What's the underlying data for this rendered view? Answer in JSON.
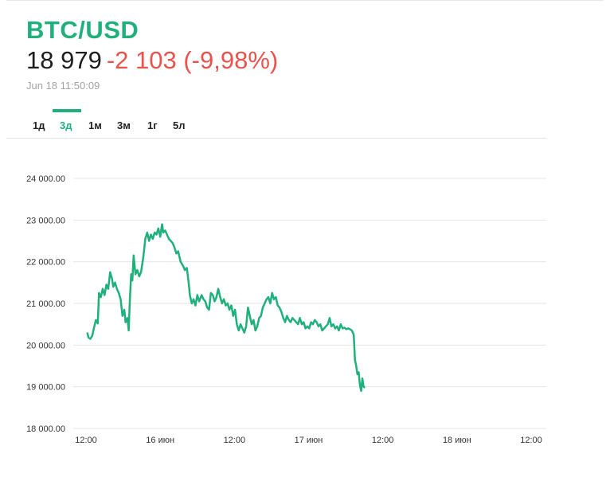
{
  "header": {
    "symbol": "BTC/USD",
    "price": "18 979",
    "change": "-2 103 (-9,98%)",
    "timestamp": "Jun 18 11:50:09"
  },
  "tabs": [
    {
      "label": "1д",
      "active": false
    },
    {
      "label": "3д",
      "active": true
    },
    {
      "label": "1м",
      "active": false
    },
    {
      "label": "3м",
      "active": false
    },
    {
      "label": "1г",
      "active": false
    },
    {
      "label": "5л",
      "active": false
    }
  ],
  "colors": {
    "accent": "#1fb07b",
    "negative": "#e8534d",
    "line": "#1fb07b"
  },
  "chart_data": {
    "type": "line",
    "title": "",
    "xlabel": "",
    "ylabel": "",
    "ylim": [
      18000,
      24000
    ],
    "xlim": [
      0,
      72
    ],
    "y_ticks": [
      {
        "value": 18000,
        "label": "18 000.00"
      },
      {
        "value": 19000,
        "label": "19 000.00"
      },
      {
        "value": 20000,
        "label": "20 000.00"
      },
      {
        "value": 21000,
        "label": "21 000.00"
      },
      {
        "value": 22000,
        "label": "22 000.00"
      },
      {
        "value": 23000,
        "label": "23 000.00"
      },
      {
        "value": 24000,
        "label": "24 000.00"
      }
    ],
    "x_ticks": [
      {
        "value": 0,
        "label": "12:00"
      },
      {
        "value": 12,
        "label": "16 июн"
      },
      {
        "value": 24,
        "label": "12:00"
      },
      {
        "value": 36,
        "label": "17 июн"
      },
      {
        "value": 48,
        "label": "12:00"
      },
      {
        "value": 60,
        "label": "18 июн"
      },
      {
        "value": 72,
        "label": "12:00"
      }
    ],
    "grid": true,
    "series": [
      {
        "values": [
          [
            0.2,
            20300
          ],
          [
            0.4,
            20180
          ],
          [
            0.7,
            20150
          ],
          [
            1.0,
            20220
          ],
          [
            1.3,
            20420
          ],
          [
            1.6,
            20600
          ],
          [
            1.9,
            20520
          ],
          [
            2.1,
            21250
          ],
          [
            2.4,
            21150
          ],
          [
            2.7,
            21350
          ],
          [
            3.0,
            21200
          ],
          [
            3.3,
            21450
          ],
          [
            3.6,
            21350
          ],
          [
            3.9,
            21750
          ],
          [
            4.2,
            21600
          ],
          [
            4.4,
            21400
          ],
          [
            4.7,
            21500
          ],
          [
            5.0,
            21350
          ],
          [
            5.3,
            21250
          ],
          [
            5.6,
            21100
          ],
          [
            5.9,
            20700
          ],
          [
            6.2,
            20850
          ],
          [
            6.4,
            20550
          ],
          [
            6.7,
            20650
          ],
          [
            6.9,
            20350
          ],
          [
            7.1,
            21100
          ],
          [
            7.3,
            21700
          ],
          [
            7.5,
            21550
          ],
          [
            7.7,
            22150
          ],
          [
            8.0,
            21700
          ],
          [
            8.3,
            21800
          ],
          [
            8.6,
            21650
          ],
          [
            8.9,
            21750
          ],
          [
            9.1,
            21950
          ],
          [
            9.3,
            22150
          ],
          [
            9.6,
            22550
          ],
          [
            9.9,
            22700
          ],
          [
            10.2,
            22500
          ],
          [
            10.5,
            22650
          ],
          [
            10.8,
            22550
          ],
          [
            11.1,
            22700
          ],
          [
            11.4,
            22650
          ],
          [
            11.7,
            22800
          ],
          [
            12.0,
            22600
          ],
          [
            12.3,
            22900
          ],
          [
            12.5,
            22700
          ],
          [
            12.8,
            22750
          ],
          [
            13.1,
            22650
          ],
          [
            13.4,
            22550
          ],
          [
            13.7,
            22500
          ],
          [
            14.0,
            22450
          ],
          [
            14.3,
            22350
          ],
          [
            14.6,
            22200
          ],
          [
            14.9,
            22250
          ],
          [
            15.3,
            22000
          ],
          [
            15.7,
            21900
          ],
          [
            16.0,
            21800
          ],
          [
            16.3,
            21850
          ],
          [
            16.6,
            21500
          ],
          [
            16.8,
            21200
          ],
          [
            17.1,
            21000
          ],
          [
            17.4,
            21100
          ],
          [
            17.7,
            20950
          ],
          [
            18.0,
            21200
          ],
          [
            18.3,
            21050
          ],
          [
            18.7,
            21200
          ],
          [
            19.0,
            21100
          ],
          [
            19.3,
            21050
          ],
          [
            19.6,
            20900
          ],
          [
            19.9,
            20850
          ],
          [
            20.2,
            21250
          ],
          [
            20.5,
            21200
          ],
          [
            20.8,
            21050
          ],
          [
            21.1,
            21150
          ],
          [
            21.4,
            21350
          ],
          [
            21.7,
            21150
          ],
          [
            22.0,
            21000
          ],
          [
            22.3,
            21100
          ],
          [
            22.6,
            20950
          ],
          [
            22.9,
            21000
          ],
          [
            23.2,
            20850
          ],
          [
            23.5,
            20950
          ],
          [
            23.8,
            20700
          ],
          [
            24.1,
            20850
          ],
          [
            24.4,
            20500
          ],
          [
            24.7,
            20350
          ],
          [
            25.0,
            20500
          ],
          [
            25.3,
            20400
          ],
          [
            25.6,
            20300
          ],
          [
            25.9,
            20450
          ],
          [
            26.2,
            20900
          ],
          [
            26.5,
            20700
          ],
          [
            26.8,
            20500
          ],
          [
            27.1,
            20600
          ],
          [
            27.4,
            20350
          ],
          [
            27.7,
            20450
          ],
          [
            28.0,
            20650
          ],
          [
            28.3,
            20700
          ],
          [
            28.6,
            20900
          ],
          [
            28.9,
            21000
          ],
          [
            29.2,
            21100
          ],
          [
            29.5,
            21150
          ],
          [
            29.8,
            21000
          ],
          [
            30.1,
            21250
          ],
          [
            30.4,
            21100
          ],
          [
            30.7,
            21150
          ],
          [
            31.0,
            20950
          ],
          [
            31.3,
            20900
          ],
          [
            31.6,
            20800
          ],
          [
            31.9,
            20650
          ],
          [
            32.2,
            20550
          ],
          [
            32.5,
            20700
          ],
          [
            32.8,
            20600
          ],
          [
            33.1,
            20550
          ],
          [
            33.4,
            20650
          ],
          [
            33.7,
            20600
          ],
          [
            34.0,
            20550
          ],
          [
            34.3,
            20500
          ],
          [
            34.6,
            20650
          ],
          [
            34.9,
            20500
          ],
          [
            35.2,
            20550
          ],
          [
            35.5,
            20400
          ],
          [
            35.8,
            20450
          ],
          [
            36.1,
            20400
          ],
          [
            36.4,
            20550
          ],
          [
            36.7,
            20500
          ],
          [
            37.0,
            20600
          ],
          [
            37.3,
            20550
          ],
          [
            37.6,
            20450
          ],
          [
            37.9,
            20500
          ],
          [
            38.2,
            20350
          ],
          [
            38.5,
            20400
          ],
          [
            38.8,
            20450
          ],
          [
            39.1,
            20500
          ],
          [
            39.4,
            20650
          ],
          [
            39.7,
            20450
          ],
          [
            40.0,
            20500
          ],
          [
            40.3,
            20400
          ],
          [
            40.6,
            20450
          ],
          [
            40.9,
            20350
          ],
          [
            41.2,
            20500
          ],
          [
            41.5,
            20400
          ],
          [
            41.8,
            20420
          ],
          [
            42.1,
            20380
          ],
          [
            42.4,
            20400
          ],
          [
            42.7,
            20380
          ],
          [
            43.0,
            20350
          ],
          [
            43.3,
            20250
          ],
          [
            43.5,
            19650
          ],
          [
            43.7,
            19500
          ],
          [
            43.9,
            19300
          ],
          [
            44.1,
            19350
          ],
          [
            44.3,
            19050
          ],
          [
            44.5,
            18900
          ],
          [
            44.7,
            19200
          ],
          [
            44.9,
            19000
          ],
          [
            45.1,
            18979
          ]
        ]
      }
    ]
  }
}
